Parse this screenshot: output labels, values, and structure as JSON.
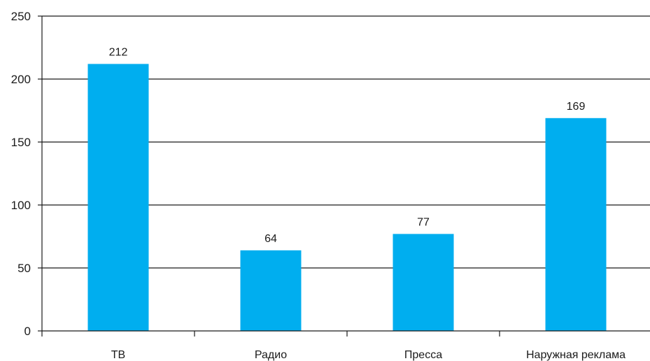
{
  "colors": {
    "bar": "#00aeef",
    "gridline": "#1a1a1a",
    "axis": "#1a1a1a",
    "text": "#1a1a1a",
    "background": "#ffffff"
  },
  "chart_data": {
    "type": "bar",
    "title": "",
    "xlabel": "",
    "ylabel": "",
    "categories": [
      "ТВ",
      "Радио",
      "Пресса",
      "Наружная реклама"
    ],
    "values": [
      212,
      64,
      77,
      169
    ],
    "ylim": [
      0,
      250
    ],
    "yticks": [
      0,
      50,
      100,
      150,
      200,
      250
    ],
    "grid": true,
    "legend": "none",
    "data_labels": true
  }
}
